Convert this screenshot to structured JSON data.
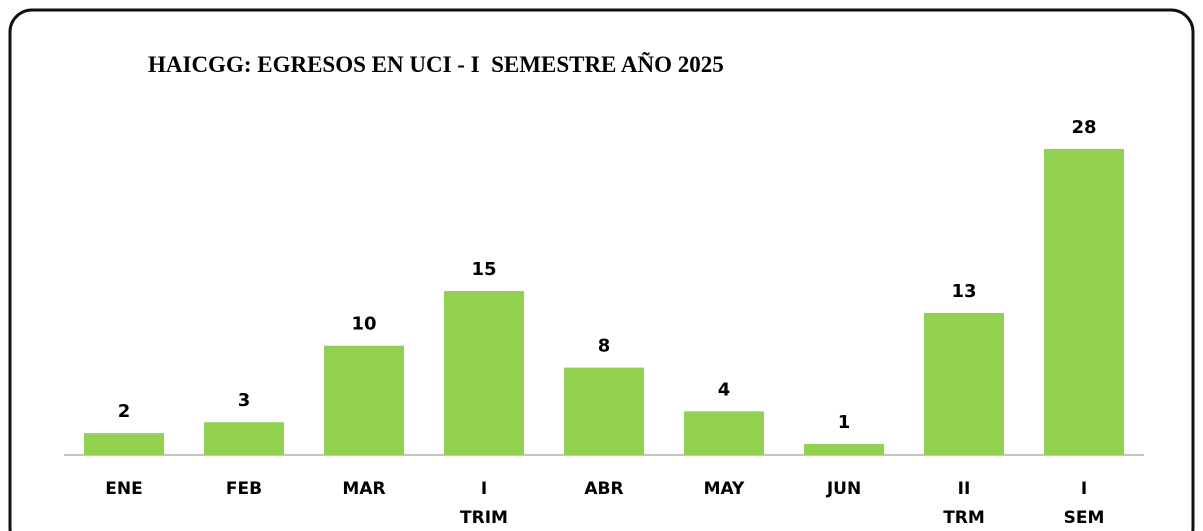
{
  "chart_data": {
    "type": "bar",
    "title": "HAICGG: EGRESOS EN UCI - I  SEMESTRE AÑO 2025",
    "categories": [
      "ENE",
      "FEB",
      "MAR",
      "I TRIM",
      "ABR",
      "MAY",
      "JUN",
      "II TRM",
      "I SEM"
    ],
    "values": [
      2,
      3,
      10,
      15,
      8,
      4,
      1,
      13,
      28
    ],
    "color": "#92d050"
  }
}
